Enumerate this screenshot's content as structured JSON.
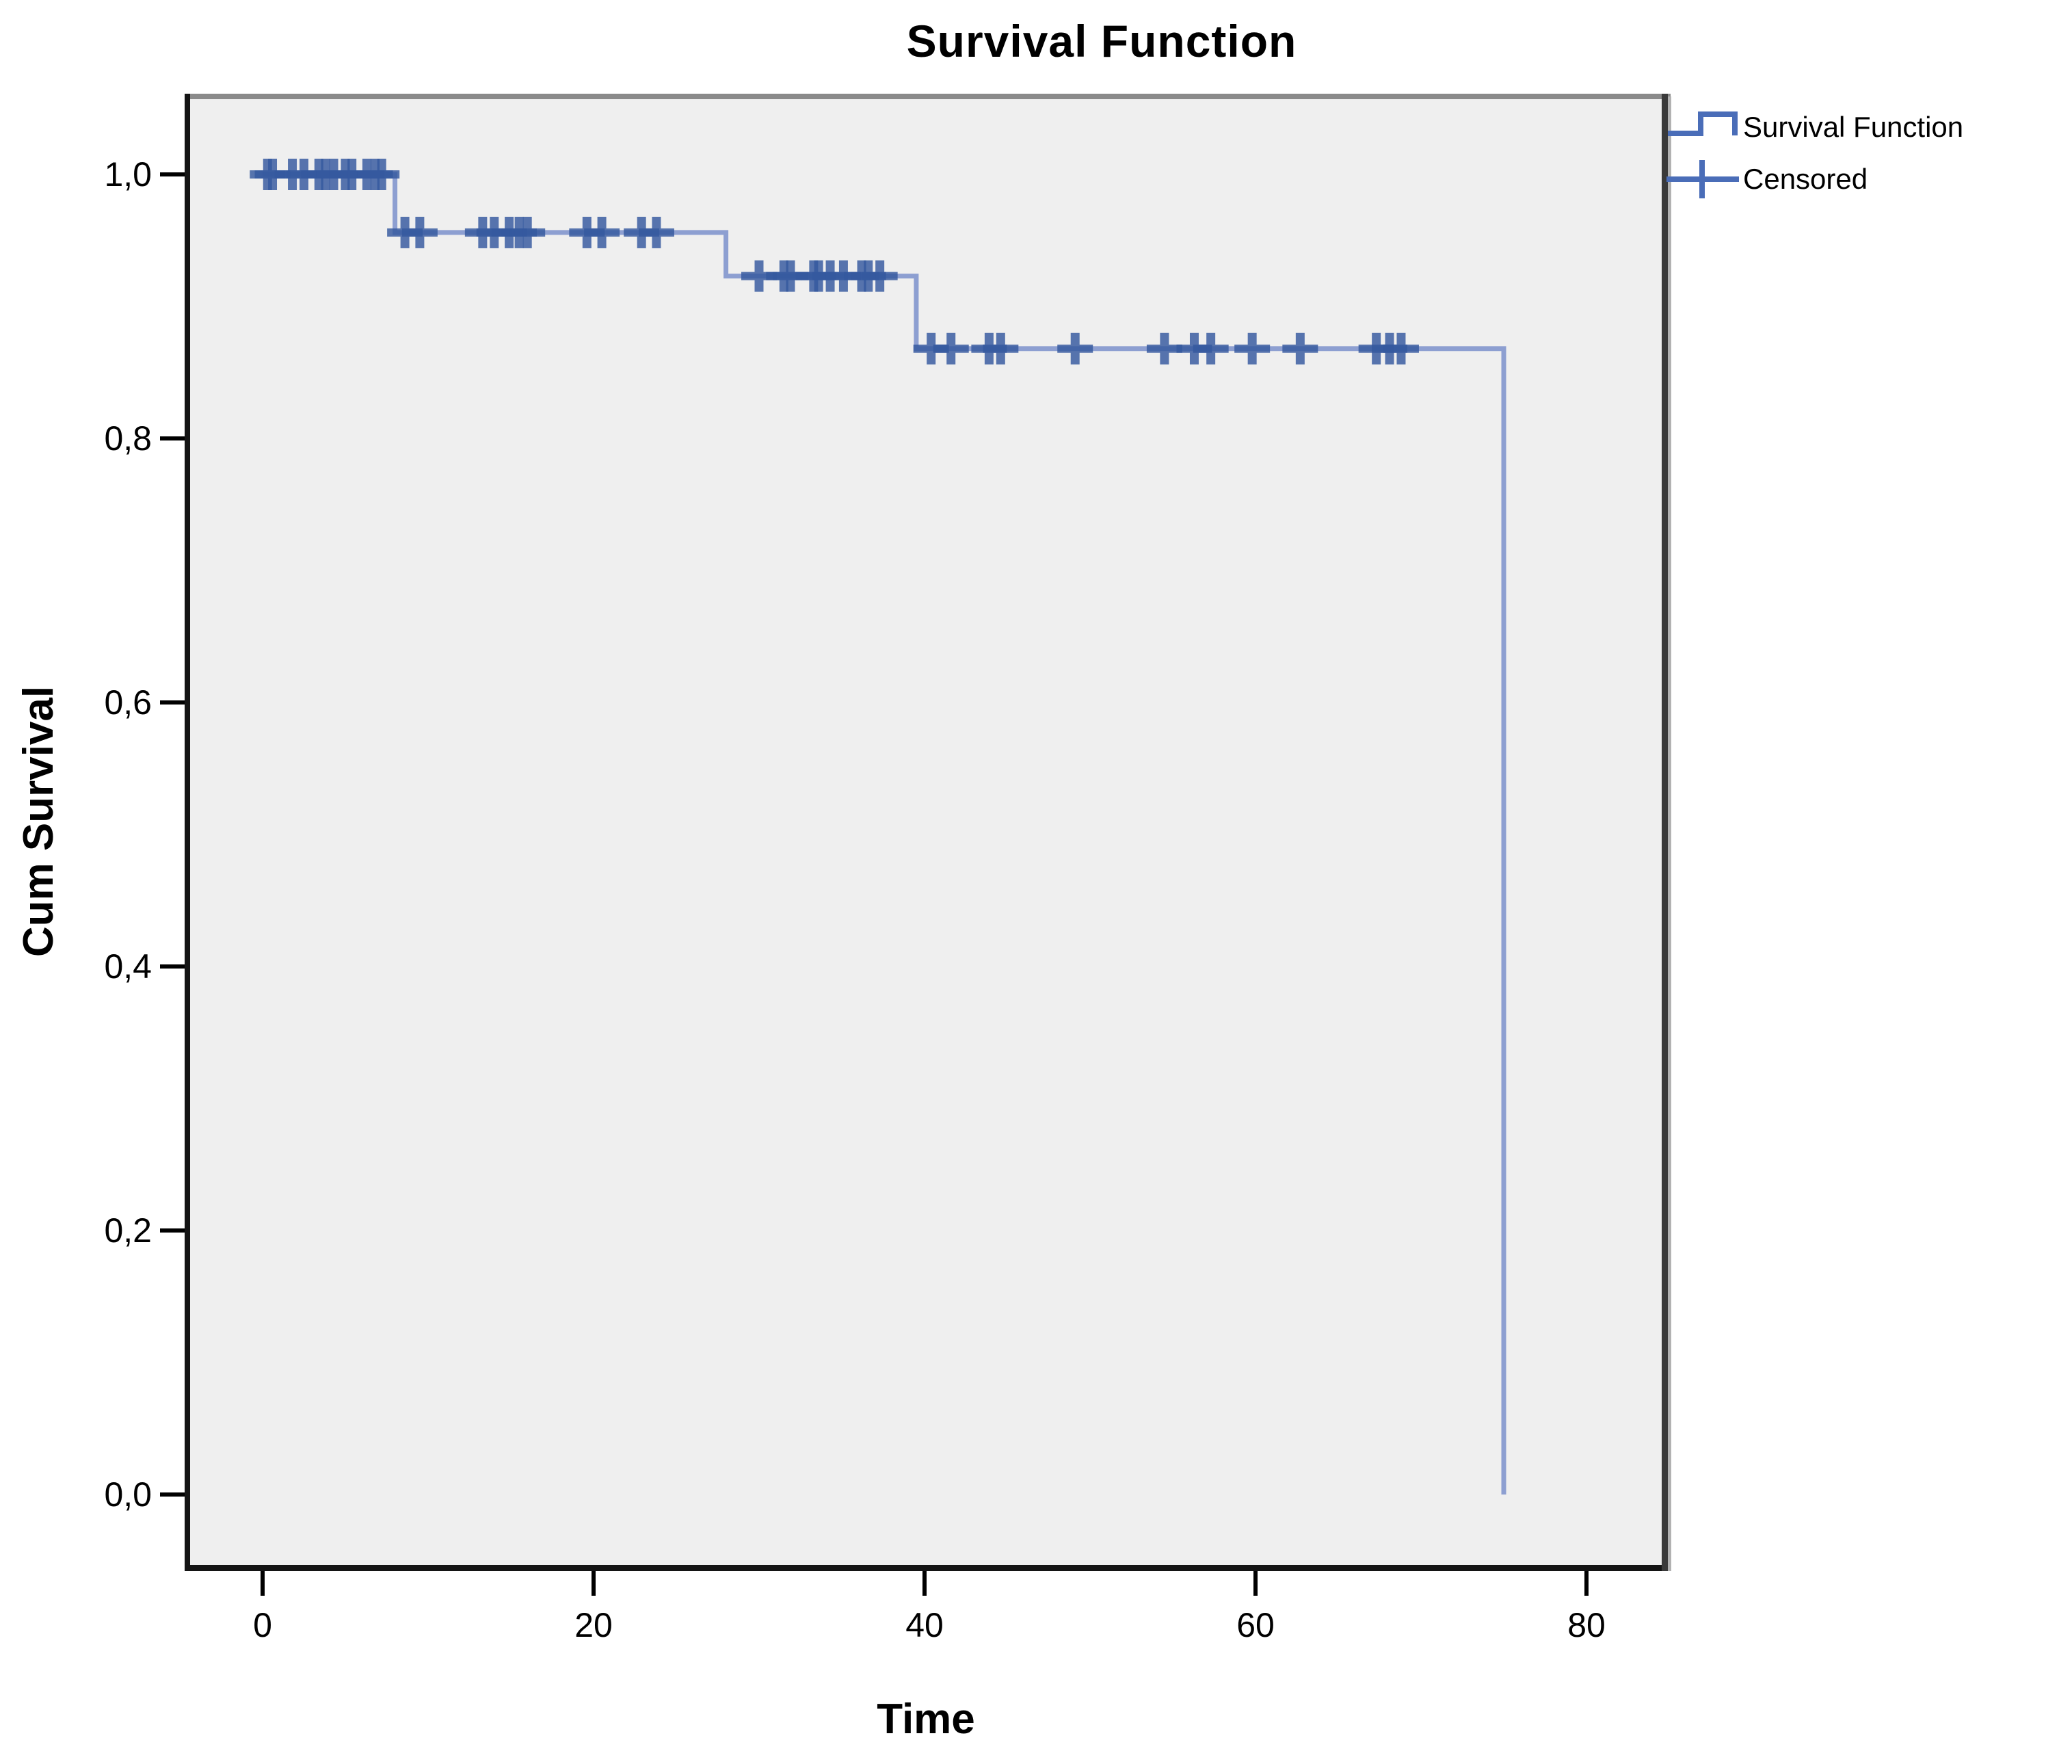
{
  "chart_data": {
    "type": "line",
    "subtype": "kaplan-meier-step",
    "title": "Survival Function",
    "xlabel": "Time",
    "ylabel": "Cum Survival",
    "xlim": [
      0,
      80
    ],
    "ylim": [
      0.0,
      1.0
    ],
    "grid": false,
    "legend_position": "top-right-outside",
    "x_ticks": [
      0,
      20,
      40,
      60,
      80
    ],
    "y_ticks": [
      {
        "value": 1.0,
        "label": "1,0"
      },
      {
        "value": 0.8,
        "label": "0,8"
      },
      {
        "value": 0.6,
        "label": "0,6"
      },
      {
        "value": 0.4,
        "label": "0,4"
      },
      {
        "value": 0.2,
        "label": "0,2"
      },
      {
        "value": 0.0,
        "label": "0,0"
      }
    ],
    "legend": [
      {
        "label": "Survival Function",
        "marker": "step-line"
      },
      {
        "label": "Censored",
        "marker": "plus"
      }
    ],
    "series": [
      {
        "name": "Survival Function",
        "type": "step",
        "points": [
          [
            0,
            1.0
          ],
          [
            8,
            1.0
          ],
          [
            8,
            0.956
          ],
          [
            28,
            0.956
          ],
          [
            28,
            0.923
          ],
          [
            39.5,
            0.923
          ],
          [
            39.5,
            0.868
          ],
          [
            75,
            0.868
          ],
          [
            75,
            0.0
          ]
        ]
      },
      {
        "name": "Censored",
        "type": "plus-markers",
        "points": [
          [
            0.3,
            1.0
          ],
          [
            0.6,
            1.0
          ],
          [
            1.8,
            1.0
          ],
          [
            2.5,
            1.0
          ],
          [
            3.4,
            1.0
          ],
          [
            3.8,
            1.0
          ],
          [
            4.3,
            1.0
          ],
          [
            5.0,
            1.0
          ],
          [
            5.4,
            1.0
          ],
          [
            6.3,
            1.0
          ],
          [
            6.8,
            1.0
          ],
          [
            7.2,
            1.0
          ],
          [
            8.6,
            0.956
          ],
          [
            9.5,
            0.956
          ],
          [
            13.3,
            0.956
          ],
          [
            14.0,
            0.956
          ],
          [
            14.9,
            0.956
          ],
          [
            15.5,
            0.956
          ],
          [
            16.0,
            0.956
          ],
          [
            19.6,
            0.956
          ],
          [
            20.5,
            0.956
          ],
          [
            22.9,
            0.956
          ],
          [
            23.8,
            0.956
          ],
          [
            30.0,
            0.923
          ],
          [
            31.5,
            0.923
          ],
          [
            31.9,
            0.923
          ],
          [
            33.3,
            0.923
          ],
          [
            33.6,
            0.923
          ],
          [
            34.3,
            0.923
          ],
          [
            35.1,
            0.923
          ],
          [
            36.2,
            0.923
          ],
          [
            36.6,
            0.923
          ],
          [
            37.3,
            0.923
          ],
          [
            40.4,
            0.868
          ],
          [
            41.6,
            0.868
          ],
          [
            43.9,
            0.868
          ],
          [
            44.6,
            0.868
          ],
          [
            49.1,
            0.868
          ],
          [
            54.5,
            0.868
          ],
          [
            56.3,
            0.868
          ],
          [
            57.3,
            0.868
          ],
          [
            59.8,
            0.868
          ],
          [
            62.7,
            0.868
          ],
          [
            67.3,
            0.868
          ],
          [
            68.1,
            0.868
          ],
          [
            68.8,
            0.868
          ]
        ]
      }
    ],
    "colors": {
      "curve": "#8d9fd1",
      "censor_mark": "#35599f",
      "legend_icon": "#4a6db8",
      "plot_background": "#efefef",
      "frame_dark": "#141414",
      "frame_top_gray": "#8a8a8a",
      "frame_right": "#3a3a3a",
      "frame_shadow": "#b2b2b2",
      "text": "#000000"
    }
  }
}
